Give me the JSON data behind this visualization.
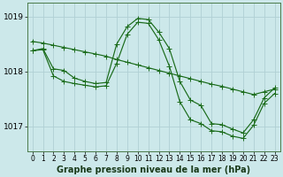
{
  "background_color": "#cce8ea",
  "plot_bg_color": "#cce8ea",
  "grid_color": "#b0d0d4",
  "line_color": "#1a6b1a",
  "title": "Graphe pression niveau de la mer (hPa)",
  "title_fontsize": 7.0,
  "ylabel_fontsize": 6.5,
  "xlabel_fontsize": 5.5,
  "ylim": [
    1016.55,
    1019.25
  ],
  "yticks": [
    1017,
    1018,
    1019
  ],
  "xlim": [
    -0.5,
    23.5
  ],
  "xticks": [
    0,
    1,
    2,
    3,
    4,
    5,
    6,
    7,
    8,
    9,
    10,
    11,
    12,
    13,
    14,
    15,
    16,
    17,
    18,
    19,
    20,
    21,
    22,
    23
  ],
  "y_flat": [
    1018.55,
    1018.52,
    1018.48,
    1018.44,
    1018.4,
    1018.36,
    1018.32,
    1018.28,
    1018.22,
    1018.17,
    1018.12,
    1018.07,
    1018.02,
    1017.97,
    1017.92,
    1017.87,
    1017.82,
    1017.77,
    1017.73,
    1017.68,
    1017.63,
    1017.58,
    1017.63,
    1017.68
  ],
  "y_peak": [
    1018.38,
    1018.42,
    1018.05,
    1018.02,
    1017.88,
    1017.82,
    1017.78,
    1017.8,
    1018.5,
    1018.82,
    1018.97,
    1018.95,
    1018.72,
    1018.42,
    1017.82,
    1017.48,
    1017.38,
    1017.05,
    1017.03,
    1016.95,
    1016.88,
    1017.12,
    1017.52,
    1017.7
  ],
  "y_low": [
    1018.38,
    1018.4,
    1017.92,
    1017.82,
    1017.78,
    1017.75,
    1017.72,
    1017.74,
    1018.15,
    1018.68,
    1018.9,
    1018.88,
    1018.58,
    1018.1,
    1017.45,
    1017.12,
    1017.05,
    1016.92,
    1016.9,
    1016.82,
    1016.78,
    1017.02,
    1017.42,
    1017.6
  ]
}
